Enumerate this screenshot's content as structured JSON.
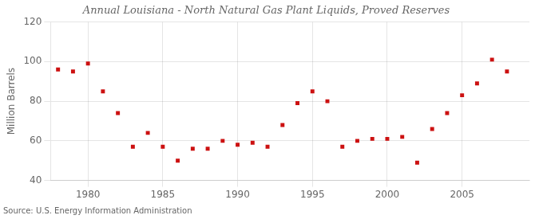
{
  "chart_data": {
    "type": "scatter",
    "title": "Annual Louisiana - North Natural Gas Plant Liquids, Proved Reserves",
    "ylabel": "Million Barrels",
    "source": "Source: U.S. Energy Information Administration",
    "x": [
      1978,
      1979,
      1980,
      1981,
      1982,
      1983,
      1984,
      1985,
      1986,
      1987,
      1988,
      1989,
      1990,
      1991,
      1992,
      1993,
      1994,
      1995,
      1996,
      1997,
      1998,
      1999,
      2000,
      2001,
      2002,
      2003,
      2004,
      2005,
      2006,
      2007,
      2008
    ],
    "values": [
      96,
      95,
      99,
      85,
      74,
      57,
      64,
      57,
      50,
      56,
      56,
      60,
      58,
      59,
      57,
      68,
      79,
      85,
      80,
      57,
      60,
      61,
      61,
      62,
      49,
      66,
      74,
      83,
      89,
      101,
      95
    ],
    "color": "#cc1111",
    "marker": "square",
    "xlim": [
      1977.5,
      2009.5
    ],
    "ylim": [
      40,
      120
    ],
    "xticks": [
      1980,
      1985,
      1990,
      1995,
      2000,
      2005
    ],
    "yticks": [
      40,
      60,
      80,
      100,
      120
    ],
    "grid": true
  }
}
